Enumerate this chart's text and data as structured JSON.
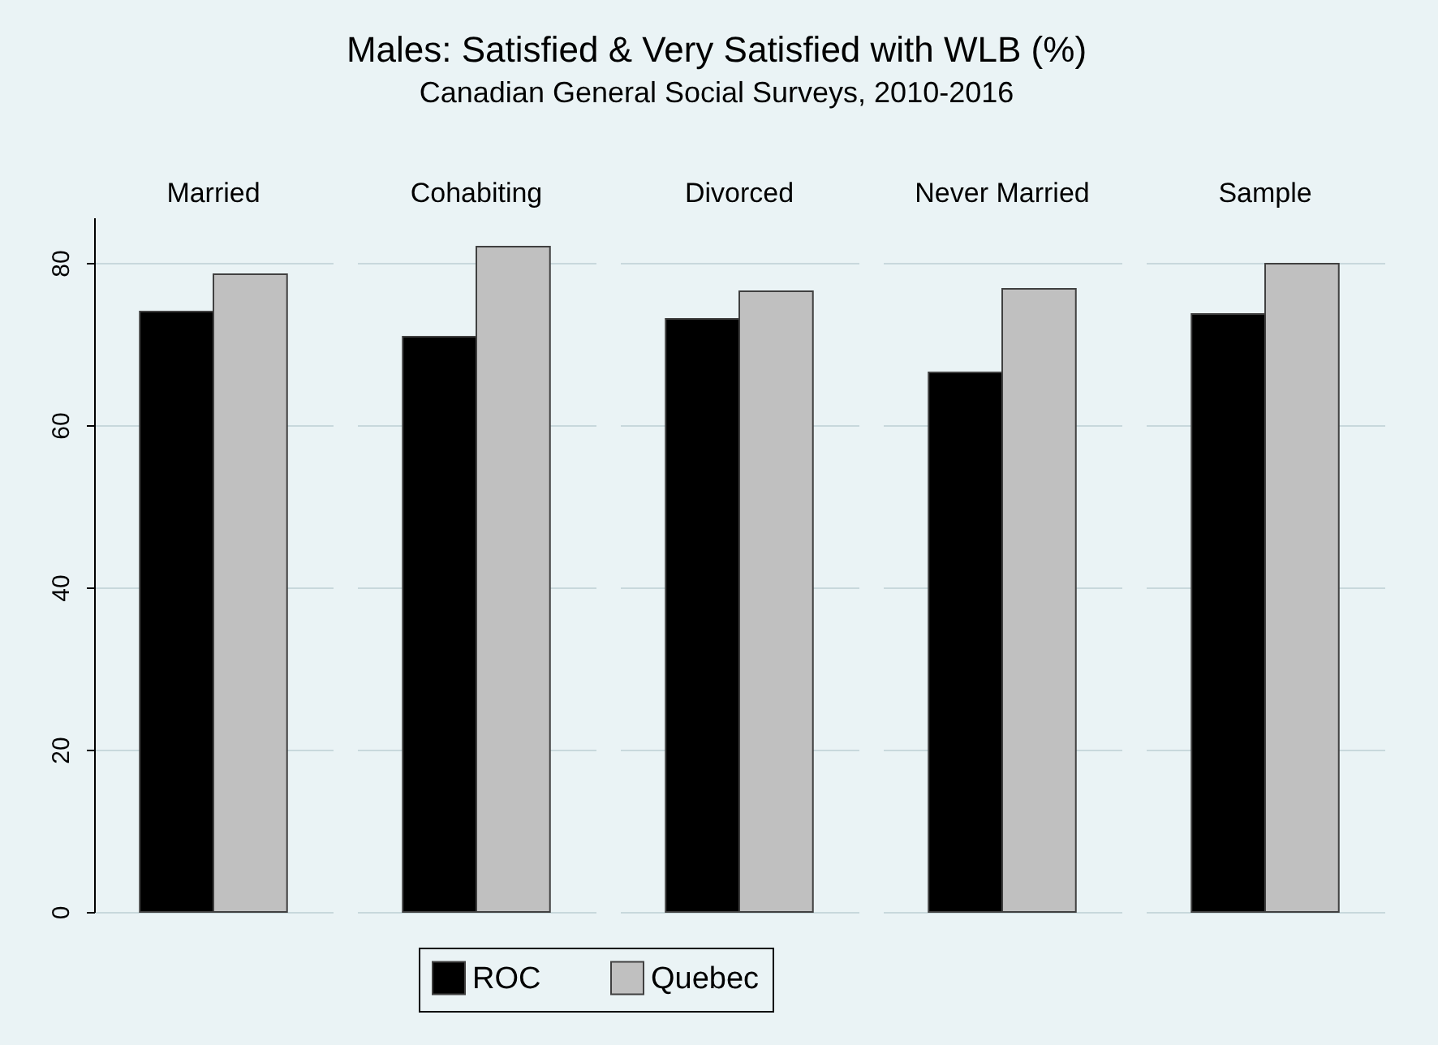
{
  "chart_data": {
    "type": "bar",
    "title": "Males: Satisfied & Very Satisfied with WLB (%)",
    "subtitle": "Canadian General Social Surveys, 2010-2016",
    "categories": [
      "Married",
      "Cohabiting",
      "Divorced",
      "Never Married",
      "Sample"
    ],
    "series": [
      {
        "name": "ROC",
        "color": "#000000",
        "values": [
          74.0,
          70.9,
          73.1,
          66.5,
          73.7
        ]
      },
      {
        "name": "Quebec",
        "color": "#c0c0c0",
        "values": [
          78.6,
          82.0,
          76.5,
          76.8,
          79.9
        ]
      }
    ],
    "ylim": [
      0,
      85.6
    ],
    "yticks": [
      0,
      20,
      40,
      60,
      80
    ],
    "grid": "y",
    "legend": "bottom"
  }
}
